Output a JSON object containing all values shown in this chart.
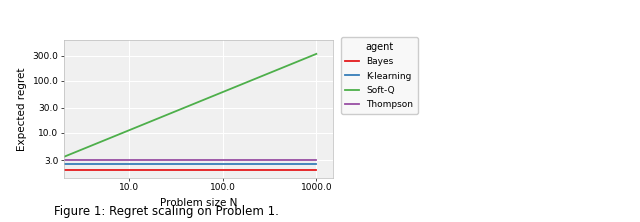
{
  "title": "",
  "xlabel": "Problem size N",
  "ylabel": "Expected regret",
  "legend_title": "agent",
  "agents": [
    "Bayes",
    "K-learning",
    "Soft-Q",
    "Thompson"
  ],
  "colors": [
    "#e41a1c",
    "#377eb8",
    "#4daf4a",
    "#984ea3"
  ],
  "x_min": 2,
  "x_max": 1000,
  "y_ticks": [
    3.0,
    10.0,
    30.0,
    100.0,
    300.0
  ],
  "y_tick_labels": [
    "3.0",
    "10.0",
    "30.0",
    "100.0",
    "300.0"
  ],
  "x_ticks": [
    10.0,
    100.0,
    1000.0
  ],
  "x_tick_labels": [
    "10.0",
    "100.0",
    "1000.0"
  ],
  "bayes_y": 1.95,
  "klearning_y": 2.55,
  "thompson_y": 3.1,
  "softq_start": 3.5,
  "softq_end": 325.0,
  "background_color": "#f0f0f0",
  "grid_color": "#ffffff",
  "linewidth": 1.3,
  "fig_width": 3.3,
  "fig_height": 1.7,
  "caption": "Figure 1: Regret scaling on Problem 1.",
  "caption_fontsize": 8.5
}
